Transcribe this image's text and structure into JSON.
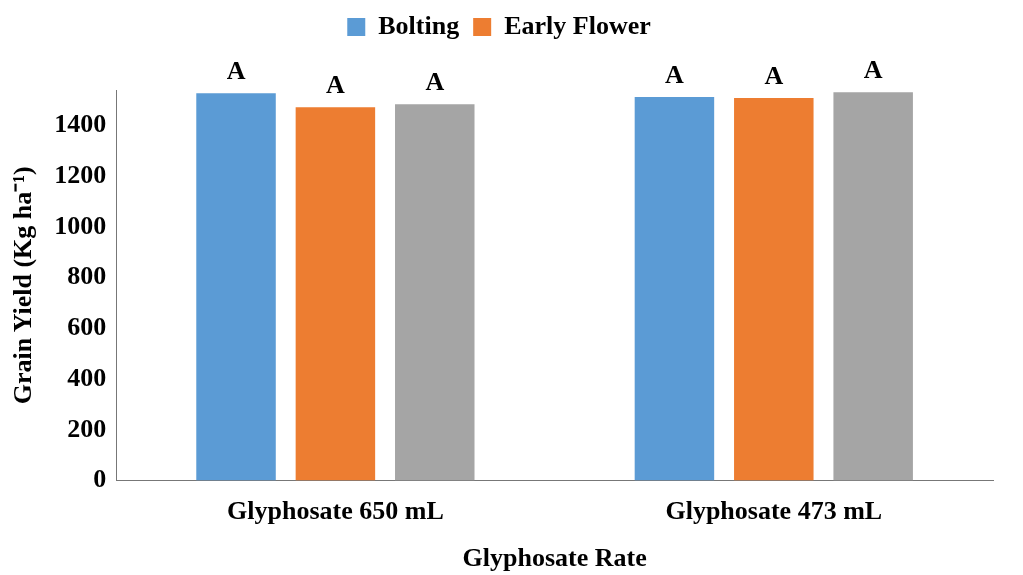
{
  "chart_data": {
    "type": "bar",
    "xlabel": "Glyphosate Rate",
    "ylabel": "Grain Yield (Kg ha⁻¹)",
    "categories": [
      "Glyphosate 650 mL",
      "Glyphosate 473 mL"
    ],
    "series": [
      {
        "name": "Bolting",
        "color": "#5b9bd5",
        "values": [
          1527,
          1512
        ],
        "value_labels": [
          "A",
          "A"
        ]
      },
      {
        "name": "Early Flower",
        "color": "#ed7d31",
        "values": [
          1472,
          1508
        ],
        "value_labels": [
          "A",
          "A"
        ]
      },
      {
        "color": "#a5a5a5",
        "values": [
          1484,
          1531
        ],
        "value_labels": [
          "A",
          "A"
        ]
      }
    ],
    "ylim": [
      0,
      1540
    ],
    "yticks": [
      0,
      200,
      400,
      600,
      800,
      1000,
      1200,
      1400
    ],
    "grid": false,
    "legend": "top"
  }
}
